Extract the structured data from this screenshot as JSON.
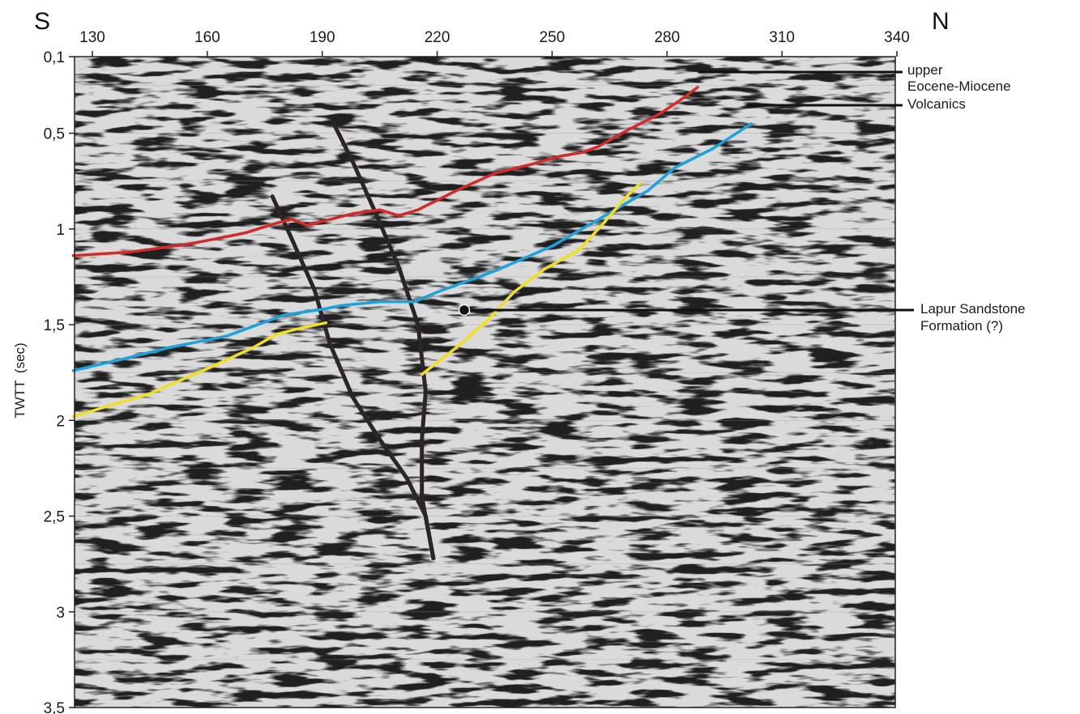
{
  "directions": {
    "left": "S",
    "right": "N"
  },
  "x_ticks": [
    130,
    160,
    190,
    220,
    250,
    280,
    310,
    340
  ],
  "y_ticks": [
    {
      "value": 0.1,
      "label": "0,1"
    },
    {
      "value": 0.5,
      "label": "0,5"
    },
    {
      "value": 1.0,
      "label": "1"
    },
    {
      "value": 1.5,
      "label": "1,5"
    },
    {
      "value": 2.0,
      "label": "2"
    },
    {
      "value": 2.5,
      "label": "2,5"
    },
    {
      "value": 3.0,
      "label": "3"
    },
    {
      "value": 3.5,
      "label": "3,5"
    }
  ],
  "y_axis": {
    "title": "TWTT",
    "unit": "(sec)"
  },
  "annotations": {
    "eocene_line1": "upper",
    "eocene_line2": "Eocene-Miocene",
    "volcanics": "Volcanics",
    "lapur_line1": "Lapur Sandstone",
    "lapur_line2": "Formation (?)"
  },
  "colors": {
    "eocene_miocene_horizon": "#d42a2a",
    "volcanics_horizon": "#1aa3dc",
    "lapur_horizon": "#f0e020",
    "fault": "#2a2526",
    "seismic_background": "#d8d8d8"
  },
  "chart_data": {
    "type": "diagram",
    "xlim": [
      125,
      341
    ],
    "ylim": [
      0.1,
      3.5
    ],
    "horizons": [
      {
        "label_ref": "upper Eocene-Miocene",
        "color_key": "eocene_miocene_horizon",
        "points": [
          [
            125,
            1.14
          ],
          [
            140,
            1.12
          ],
          [
            155,
            1.08
          ],
          [
            170,
            1.02
          ],
          [
            178,
            0.97
          ],
          [
            182,
            0.95
          ],
          [
            186,
            0.98
          ],
          [
            190,
            0.96
          ],
          [
            198,
            0.92
          ],
          [
            205,
            0.9
          ],
          [
            210,
            0.93
          ],
          [
            215,
            0.9
          ],
          [
            225,
            0.8
          ],
          [
            235,
            0.71
          ],
          [
            245,
            0.66
          ],
          [
            252,
            0.62
          ],
          [
            258,
            0.6
          ],
          [
            262,
            0.57
          ],
          [
            270,
            0.48
          ],
          [
            278,
            0.4
          ],
          [
            284,
            0.32
          ],
          [
            288,
            0.26
          ]
        ]
      },
      {
        "label_ref": "Volcanics",
        "color_key": "volcanics_horizon",
        "points": [
          [
            125,
            1.74
          ],
          [
            138,
            1.68
          ],
          [
            150,
            1.62
          ],
          [
            165,
            1.56
          ],
          [
            180,
            1.45
          ],
          [
            190,
            1.42
          ],
          [
            195,
            1.4
          ],
          [
            205,
            1.38
          ],
          [
            214,
            1.38
          ],
          [
            220,
            1.33
          ],
          [
            235,
            1.22
          ],
          [
            250,
            1.09
          ],
          [
            263,
            0.94
          ],
          [
            275,
            0.8
          ],
          [
            282,
            0.68
          ],
          [
            292,
            0.58
          ],
          [
            302,
            0.45
          ]
        ]
      },
      {
        "label_ref": "Lapur Sandstone Formation (?)",
        "color_key": "lapur_horizon",
        "segments": [
          [
            [
              125,
              1.98
            ],
            [
              145,
              1.86
            ],
            [
              160,
              1.73
            ],
            [
              172,
              1.62
            ],
            [
              178,
              1.55
            ],
            [
              184,
              1.52
            ],
            [
              191,
              1.49
            ]
          ],
          [
            [
              216,
              1.76
            ],
            [
              225,
              1.62
            ],
            [
              233,
              1.48
            ],
            [
              240,
              1.33
            ],
            [
              248,
              1.21
            ],
            [
              257,
              1.11
            ],
            [
              263,
              0.98
            ],
            [
              269,
              0.84
            ],
            [
              273,
              0.76
            ]
          ]
        ]
      }
    ],
    "faults": [
      {
        "color_key": "fault",
        "points": [
          [
            193,
            0.45
          ],
          [
            198,
            0.65
          ],
          [
            204,
            0.92
          ],
          [
            210,
            1.2
          ],
          [
            215,
            1.5
          ],
          [
            217,
            1.85
          ],
          [
            216,
            2.1
          ],
          [
            216,
            2.4
          ],
          [
            219,
            2.72
          ]
        ]
      },
      {
        "color_key": "fault",
        "points": [
          [
            177,
            0.83
          ],
          [
            182,
            1.05
          ],
          [
            188,
            1.32
          ],
          [
            192,
            1.6
          ],
          [
            198,
            1.88
          ],
          [
            205,
            2.1
          ],
          [
            212,
            2.3
          ],
          [
            217,
            2.5
          ],
          [
            219,
            2.72
          ]
        ]
      }
    ],
    "label_points": {
      "lapur": [
        231,
        1.42
      ]
    }
  }
}
